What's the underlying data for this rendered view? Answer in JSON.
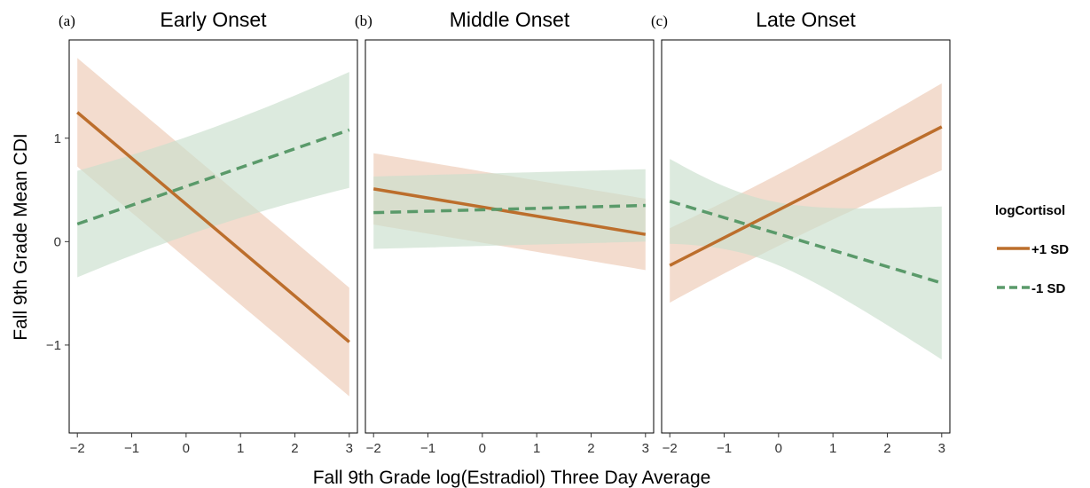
{
  "chart_data": {
    "type": "line",
    "ylabel": "Fall 9th Grade Mean CDI",
    "xlabel": "Fall 9th Grade log(Estradiol) Three Day Average",
    "x_ticks": [
      -2,
      -1,
      0,
      1,
      2,
      3
    ],
    "y_ticks": [
      -1,
      0,
      1
    ],
    "xlim": [
      -2.15,
      3.15
    ],
    "ylim": [
      -1.85,
      1.95
    ],
    "grid": false,
    "legend": {
      "title": "logCortisol",
      "placement": "right",
      "entries": [
        {
          "label": "+1 SD",
          "color": "#bc6e2c",
          "dash": "solid"
        },
        {
          "label": "-1 SD",
          "color": "#5a9a6a",
          "dash": "dashed"
        }
      ]
    },
    "colors": {
      "high": "#bc6e2c",
      "high_band": "#ecc9b3",
      "low": "#5a9a6a",
      "low_band": "#c9dfcd"
    },
    "panels": [
      {
        "letter": "(a)",
        "title": "Early Onset",
        "series": [
          {
            "name": "+1 SD",
            "x": [
              -2,
              3
            ],
            "y": [
              1.25,
              -0.97
            ],
            "ci_lower": [
              0.73,
              -1.7
            ],
            "ci_upper": [
              1.78,
              -0.24
            ],
            "ci_center": 0.5
          },
          {
            "name": "-1 SD",
            "x": [
              -2,
              3
            ],
            "y": [
              0.17,
              1.08
            ],
            "ci_lower": [
              -0.35,
              0.53
            ],
            "ci_upper": [
              0.68,
              1.65
            ],
            "ci_center": 0.0
          }
        ]
      },
      {
        "letter": "(b)",
        "title": "Middle Onset",
        "series": [
          {
            "name": "+1 SD",
            "x": [
              -2,
              3
            ],
            "y": [
              0.51,
              0.07
            ],
            "ci_lower": [
              0.17,
              -0.35
            ],
            "ci_upper": [
              0.86,
              0.5
            ],
            "ci_center": 0.5
          },
          {
            "name": "-1 SD",
            "x": [
              -2,
              3
            ],
            "y": [
              0.28,
              0.35
            ],
            "ci_lower": [
              -0.08,
              -0.07
            ],
            "ci_upper": [
              0.62,
              0.76
            ],
            "ci_center": 0.5
          }
        ]
      },
      {
        "letter": "(c)",
        "title": "Late Onset",
        "series": [
          {
            "name": "+1 SD",
            "x": [
              -2,
              3
            ],
            "y": [
              -0.23,
              1.11
            ],
            "ci_lower": [
              -0.59,
              0.69
            ],
            "ci_upper": [
              0.13,
              1.53
            ],
            "ci_center": -0.5
          },
          {
            "name": "-1 SD",
            "x": [
              -2,
              3
            ],
            "y": [
              0.39,
              -0.4
            ],
            "ci_lower": [
              -0.02,
              -1.14
            ],
            "ci_upper": [
              0.8,
              0.34
            ],
            "ci_center": -0.5
          }
        ]
      }
    ]
  }
}
